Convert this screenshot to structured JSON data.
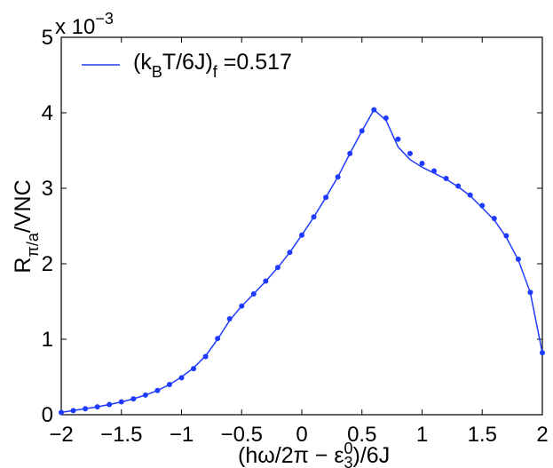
{
  "chart_data": {
    "type": "line",
    "xlabel": {
      "open": "(h",
      "omega": "ω",
      "mid": "/2π − ε",
      "sup": "0",
      "sub": "3",
      "close": ")/6J"
    },
    "ylabel": {
      "main": "R",
      "sub": "π/a",
      "rest": "/VNC"
    },
    "y_scale_base": "x 10",
    "y_scale_exp": "−3",
    "xlim": [
      -2,
      2
    ],
    "ylim": [
      0,
      5
    ],
    "x_ticks": [
      -2,
      -1.5,
      -1,
      -0.5,
      0,
      0.5,
      1,
      1.5,
      2
    ],
    "x_tick_labels": [
      "−2",
      "−1.5",
      "−1",
      "−0.5",
      "0",
      "0.5",
      "1",
      "1.5",
      "2"
    ],
    "y_ticks": [
      0,
      1,
      2,
      3,
      4,
      5
    ],
    "y_tick_labels": [
      "0",
      "1",
      "2",
      "3",
      "4",
      "5"
    ],
    "legend": {
      "position": "top-left",
      "label": {
        "open": "(k",
        "sub1": "B",
        "mid": "T/6J)",
        "sub2": "f",
        "value": " =0.517"
      }
    },
    "color": "#1f3bff",
    "series": [
      {
        "kind": "line",
        "x": [
          -2.0,
          -1.9,
          -1.8,
          -1.7,
          -1.6,
          -1.5,
          -1.4,
          -1.3,
          -1.2,
          -1.1,
          -1.0,
          -0.9,
          -0.8,
          -0.7,
          -0.6,
          -0.5,
          -0.4,
          -0.3,
          -0.2,
          -0.1,
          0.0,
          0.1,
          0.2,
          0.3,
          0.4,
          0.5,
          0.6,
          0.7,
          0.8,
          0.9,
          1.0,
          1.1,
          1.2,
          1.3,
          1.4,
          1.5,
          1.6,
          1.7,
          1.8,
          1.9,
          2.0
        ],
        "y": [
          0.03,
          0.055,
          0.08,
          0.105,
          0.135,
          0.17,
          0.21,
          0.26,
          0.32,
          0.4,
          0.5,
          0.62,
          0.78,
          1.0,
          1.25,
          1.44,
          1.6,
          1.77,
          1.95,
          2.15,
          2.38,
          2.62,
          2.88,
          3.15,
          3.46,
          3.76,
          4.04,
          3.9,
          3.55,
          3.38,
          3.28,
          3.2,
          3.12,
          3.02,
          2.9,
          2.74,
          2.58,
          2.35,
          2.05,
          1.62,
          0.82
        ]
      },
      {
        "kind": "markers",
        "x": [
          -2.0,
          -1.9,
          -1.8,
          -1.7,
          -1.6,
          -1.5,
          -1.4,
          -1.3,
          -1.2,
          -1.1,
          -1.0,
          -0.9,
          -0.8,
          -0.7,
          -0.6,
          -0.5,
          -0.4,
          -0.3,
          -0.2,
          -0.1,
          0.0,
          0.1,
          0.2,
          0.3,
          0.4,
          0.5,
          0.6,
          0.7,
          0.8,
          0.9,
          1.0,
          1.1,
          1.2,
          1.3,
          1.4,
          1.5,
          1.6,
          1.7,
          1.8,
          1.9,
          2.0
        ],
        "y": [
          0.03,
          0.055,
          0.08,
          0.105,
          0.135,
          0.17,
          0.21,
          0.26,
          0.32,
          0.4,
          0.49,
          0.61,
          0.77,
          1.01,
          1.27,
          1.44,
          1.6,
          1.77,
          1.95,
          2.15,
          2.38,
          2.62,
          2.88,
          3.15,
          3.46,
          3.76,
          4.04,
          3.93,
          3.65,
          3.46,
          3.33,
          3.23,
          3.13,
          3.03,
          2.91,
          2.77,
          2.6,
          2.37,
          2.06,
          1.62,
          0.82
        ]
      }
    ]
  }
}
